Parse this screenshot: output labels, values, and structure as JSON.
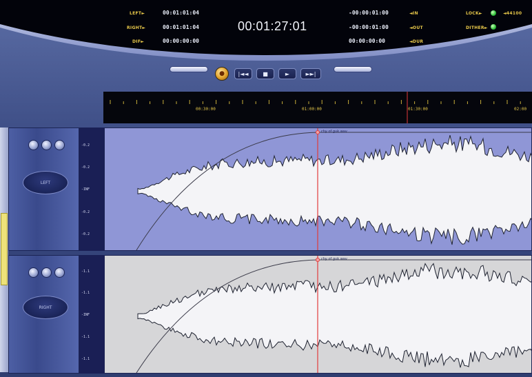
{
  "display": {
    "left_label": "LEFT►",
    "left_value": "00:01:01:04",
    "right_label": "RIGHT►",
    "right_value": "00:01:01:04",
    "dif_label": "DIF►",
    "dif_value": "00:00:00:00",
    "main_time": "00:01:27:01",
    "in_value": "-00:00:01:00",
    "in_label": "◄IN",
    "out_value": "-00:00:01:00",
    "out_label": "◄OUT",
    "dur_value": "00:00:00:00",
    "dur_label": "◄DUR",
    "lock_label": "LOCK►",
    "rate_label": "◄44100",
    "dither_label": "DITHER►",
    "led_color": "#2fbf3a"
  },
  "transport": {
    "left_pill": "",
    "right_pill": "",
    "record_glyph": "●",
    "prev_glyph": "|◄◄",
    "stop_glyph": "■",
    "play_glyph": "►",
    "next_glyph": "►►|"
  },
  "ruler": {
    "labels": [
      "00:30:00",
      "01:00:00",
      "01:30:00",
      "02:00"
    ]
  },
  "tracks": [
    {
      "channel_label": "LEFT",
      "clip_name": "chy of guk.wav",
      "scale": [
        "-0.2",
        "-0.2",
        "-INF",
        "-0.2",
        "-0.2"
      ],
      "color": "#8f96d6"
    },
    {
      "channel_label": "RIGHT",
      "clip_name": "chy of guk.wav",
      "scale": [
        "-1.1",
        "-1.1",
        "-INF",
        "-1.1",
        "-1.1"
      ],
      "color": "#d6d6d8"
    }
  ],
  "colors": {
    "playhead": "#e23b3b",
    "accent_text": "#e8c84a"
  }
}
